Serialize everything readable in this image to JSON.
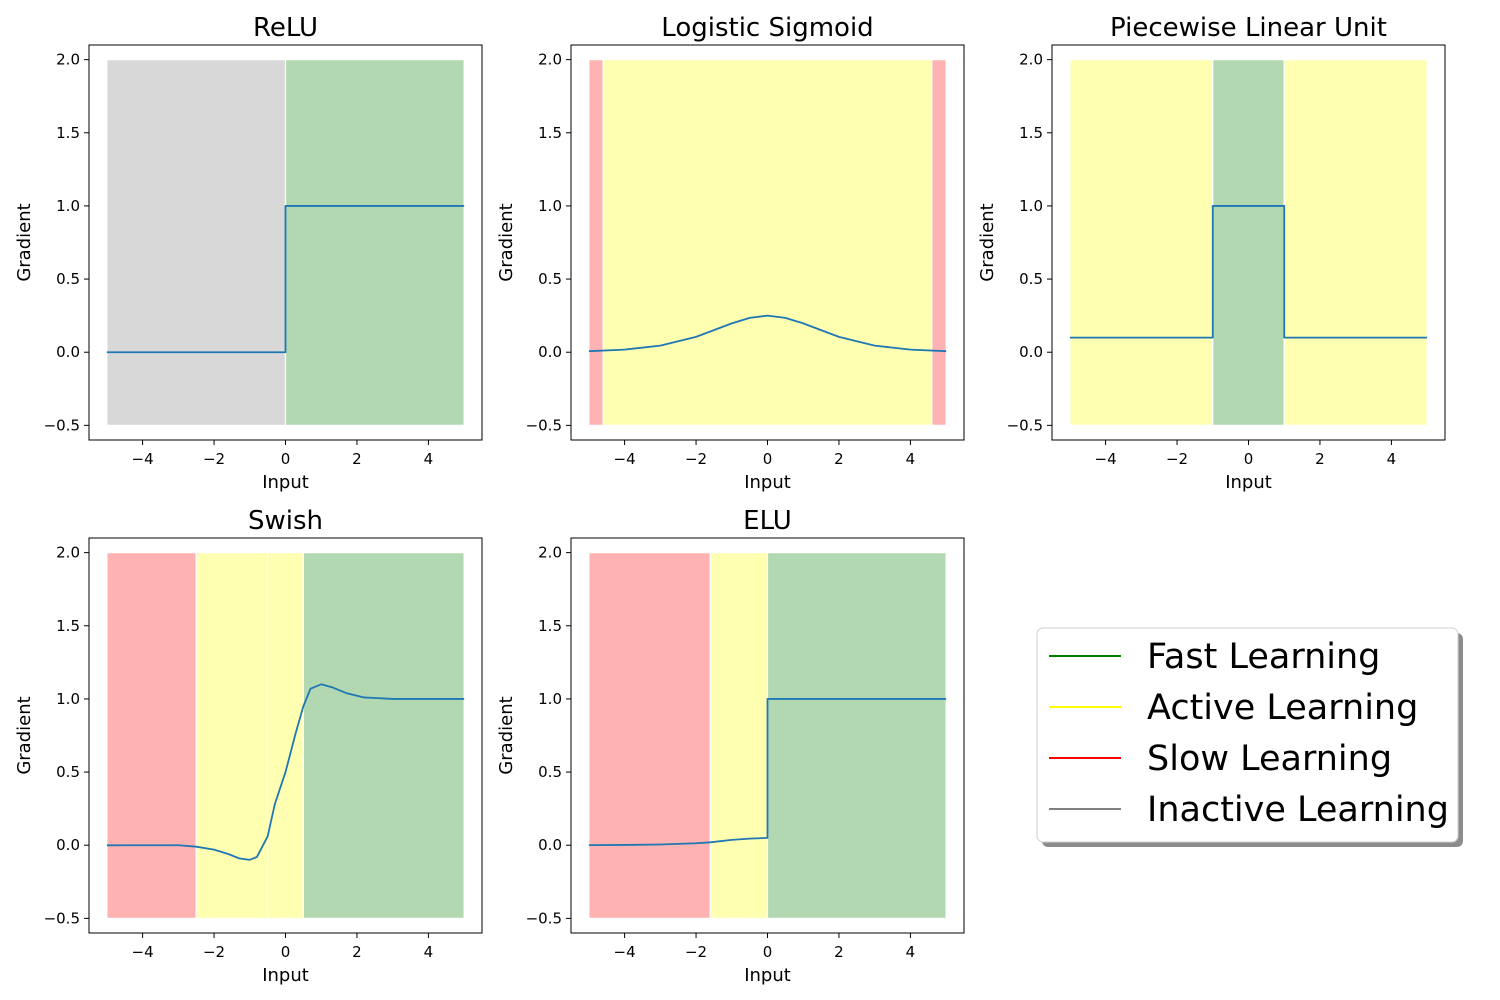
{
  "chart_data": {
    "type": "line",
    "grid": false,
    "legend": {
      "placement": "bottom-right",
      "entries": [
        {
          "label": "Fast Learning",
          "color": "#008000"
        },
        {
          "label": "Active Learning",
          "color": "#ffff00"
        },
        {
          "label": "Slow Learning",
          "color": "#ff0000"
        },
        {
          "label": "Inactive Learning",
          "color": "#808080"
        }
      ]
    },
    "zone_colors": {
      "fast": "#b2d8b2",
      "active": "#ffffb2",
      "slow": "#ffb2b2",
      "inactive": "#d8d8d8"
    },
    "line_color": "#1f77b4",
    "xlim": [
      -5.5,
      5.5
    ],
    "ylim": [
      -0.6,
      2.1
    ],
    "xticks": [
      -4,
      -2,
      0,
      2,
      4
    ],
    "yticks": [
      -0.5,
      0.0,
      0.5,
      1.0,
      1.5,
      2.0
    ],
    "ytick_labels": [
      "−0.5",
      "0.0",
      "0.5",
      "1.0",
      "1.5",
      "2.0"
    ],
    "xtick_labels": [
      "−4",
      "−2",
      "0",
      "2",
      "4"
    ],
    "panels": [
      {
        "title": "ReLU",
        "xlabel": "Input",
        "ylabel": "Gradient",
        "zones": [
          {
            "type": "inactive",
            "x0": -5,
            "x1": 0
          },
          {
            "type": "fast",
            "x0": 0,
            "x1": 5
          }
        ],
        "curve": [
          [
            -5,
            0
          ],
          [
            0,
            0
          ],
          [
            0,
            1
          ],
          [
            5,
            1
          ]
        ]
      },
      {
        "title": "Logistic Sigmoid",
        "xlabel": "Input",
        "ylabel": "Gradient",
        "zones": [
          {
            "type": "slow",
            "x0": -5,
            "x1": -4.6
          },
          {
            "type": "active",
            "x0": -4.6,
            "x1": 4.6
          },
          {
            "type": "slow",
            "x0": 4.6,
            "x1": 5
          }
        ],
        "curve": [
          [
            -5,
            0.007
          ],
          [
            -4,
            0.018
          ],
          [
            -3,
            0.045
          ],
          [
            -2,
            0.105
          ],
          [
            -1,
            0.197
          ],
          [
            -0.5,
            0.235
          ],
          [
            0,
            0.25
          ],
          [
            0.5,
            0.235
          ],
          [
            1,
            0.197
          ],
          [
            2,
            0.105
          ],
          [
            3,
            0.045
          ],
          [
            4,
            0.018
          ],
          [
            5,
            0.007
          ]
        ]
      },
      {
        "title": "Piecewise Linear Unit",
        "xlabel": "Input",
        "ylabel": "Gradient",
        "zones": [
          {
            "type": "active",
            "x0": -5,
            "x1": -1
          },
          {
            "type": "fast",
            "x0": -1,
            "x1": 1
          },
          {
            "type": "active",
            "x0": 1,
            "x1": 5
          }
        ],
        "curve": [
          [
            -5,
            0.1
          ],
          [
            -1,
            0.1
          ],
          [
            -1,
            1
          ],
          [
            1,
            1
          ],
          [
            1,
            0.1
          ],
          [
            5,
            0.1
          ]
        ]
      },
      {
        "title": "Swish",
        "xlabel": "Input",
        "ylabel": "Gradient",
        "zones": [
          {
            "type": "slow",
            "x0": -5,
            "x1": -2.5
          },
          {
            "type": "active",
            "x0": -2.5,
            "x1": -0.5
          },
          {
            "type": "active",
            "x0": -0.5,
            "x1": 0.5
          },
          {
            "type": "fast",
            "x0": 0.5,
            "x1": 5
          }
        ],
        "curve": [
          [
            -5,
            -0.0005
          ],
          [
            -4,
            -0.0002
          ],
          [
            -3,
            -0.0003
          ],
          [
            -2.5,
            -0.01
          ],
          [
            -2,
            -0.03
          ],
          [
            -1.6,
            -0.06
          ],
          [
            -1.3,
            -0.09
          ],
          [
            -1,
            -0.1
          ],
          [
            -0.8,
            -0.08
          ],
          [
            -0.5,
            0.06
          ],
          [
            -0.3,
            0.28
          ],
          [
            0,
            0.5
          ],
          [
            0.3,
            0.78
          ],
          [
            0.5,
            0.95
          ],
          [
            0.7,
            1.07
          ],
          [
            1,
            1.1
          ],
          [
            1.3,
            1.08
          ],
          [
            1.7,
            1.04
          ],
          [
            2.2,
            1.01
          ],
          [
            3,
            1.0
          ],
          [
            5,
            1.0
          ]
        ]
      },
      {
        "title": "ELU",
        "xlabel": "Input",
        "ylabel": "Gradient",
        "zones": [
          {
            "type": "slow",
            "x0": -5,
            "x1": -1.6
          },
          {
            "type": "active",
            "x0": -1.6,
            "x1": 0
          },
          {
            "type": "fast",
            "x0": 0,
            "x1": 5
          }
        ],
        "curve": [
          [
            -5,
            0.0007
          ],
          [
            -4,
            0.0018
          ],
          [
            -3,
            0.005
          ],
          [
            -2,
            0.0135
          ],
          [
            -1.6,
            0.02
          ],
          [
            -1,
            0.0368
          ],
          [
            -0.5,
            0.045
          ],
          [
            0,
            0.05
          ],
          [
            0,
            1
          ],
          [
            5,
            1
          ]
        ]
      }
    ]
  }
}
